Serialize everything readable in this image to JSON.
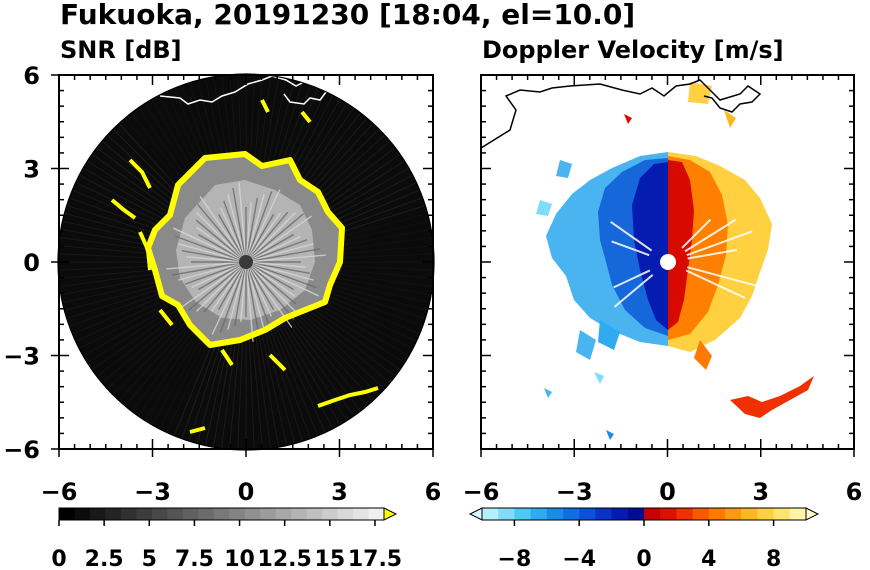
{
  "title": "Fukuoka, 20191230 [18:04, el=10.0]",
  "chart_data": [
    {
      "type": "heatmap",
      "title": "SNR [dB]",
      "xlim": [
        -6,
        6
      ],
      "ylim": [
        -6,
        6
      ],
      "x_ticks": [
        -6,
        -3,
        0,
        3,
        6
      ],
      "y_ticks": [
        -6,
        -3,
        0,
        3,
        6
      ],
      "x_tick_labels": [
        "−6",
        "−3",
        "0",
        "3",
        "6"
      ],
      "y_tick_labels": [
        "−6",
        "−3",
        "0",
        "3",
        "6"
      ],
      "range_radius": 6,
      "colorbar": {
        "ticks": [
          0,
          2.5,
          5,
          7.5,
          10,
          12.5,
          15,
          17.5
        ],
        "tick_labels": [
          "0",
          "2.5",
          "5",
          "7.5",
          "10",
          "12.5",
          "15",
          "17.5"
        ],
        "range": [
          0,
          18
        ],
        "extend": "max",
        "colors": [
          "#000000",
          "#0c0c0c",
          "#181818",
          "#242424",
          "#303030",
          "#3c3c3c",
          "#484848",
          "#545454",
          "#606060",
          "#6c6c6c",
          "#787878",
          "#848484",
          "#909090",
          "#9c9c9c",
          "#a8a8a8",
          "#b4b4b4",
          "#c0c0c0",
          "#cccccc",
          "#d8d8d8",
          "#e4e4e4",
          "#f0f0f0"
        ],
        "extend_color": "#ffff00"
      },
      "highlight_color": "#ffff00"
    },
    {
      "type": "heatmap",
      "title": "Doppler Velocity [m/s]",
      "xlim": [
        -6,
        6
      ],
      "ylim": [
        -6,
        6
      ],
      "x_ticks": [
        -6,
        -3,
        0,
        3,
        6
      ],
      "y_ticks": [
        -6,
        -3,
        0,
        3,
        6
      ],
      "x_tick_labels": [
        "−6",
        "−3",
        "0",
        "3",
        "6"
      ],
      "range_radius": 6,
      "colorbar": {
        "ticks": [
          -8,
          -4,
          0,
          4,
          8
        ],
        "tick_labels": [
          "−8",
          "−4",
          "0",
          "4",
          "8"
        ],
        "range": [
          -10,
          10
        ],
        "extend": "both",
        "colors": [
          "#b0f0ff",
          "#80dcfa",
          "#50c8f5",
          "#30aaf0",
          "#1a8ce6",
          "#106ee0",
          "#0a50d8",
          "#0832c8",
          "#061cb0",
          "#040c90",
          "#c80000",
          "#e01000",
          "#f03000",
          "#f85800",
          "#ff7a00",
          "#ff9a10",
          "#ffb820",
          "#ffd040",
          "#ffe470",
          "#fff4a8"
        ],
        "extend_low_color": "#d8f8ff",
        "extend_high_color": "#fffcd0"
      }
    }
  ]
}
